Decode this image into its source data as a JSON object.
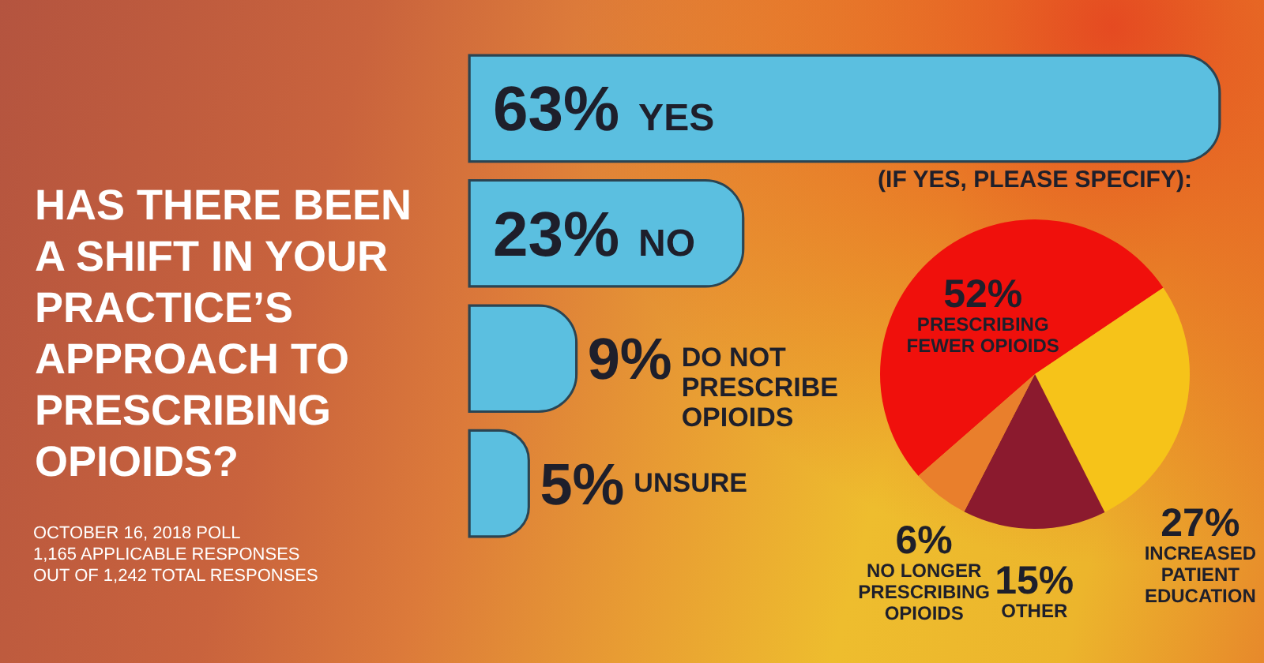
{
  "chart_data": [
    {
      "type": "bar",
      "orientation": "horizontal",
      "title": "HAS THERE BEEN A SHIFT IN YOUR PRACTICE’S APPROACH TO PRESCRIBING OPIOIDS?",
      "categories": [
        "YES",
        "NO",
        "DO NOT PRESCRIBE OPIOIDS",
        "UNSURE"
      ],
      "values": [
        63,
        23,
        9,
        5
      ],
      "value_labels": [
        "63%",
        "23%",
        "9%",
        "5%"
      ],
      "color": "#5bbfe0",
      "annotations": [
        "OCTOBER 16, 2018 POLL",
        "1,165 APPLICABLE RESPONSES",
        "OUT OF 1,242 TOTAL RESPONSES"
      ]
    },
    {
      "type": "pie",
      "title": "(IF YES, PLEASE SPECIFY):",
      "categories": [
        "PRESCRIBING FEWER OPIOIDS",
        "INCREASED PATIENT EDUCATION",
        "OTHER",
        "NO LONGER PRESCRIBING OPIOIDS"
      ],
      "values": [
        52,
        27,
        15,
        6
      ],
      "value_labels": [
        "52%",
        "27%",
        "15%",
        "6%"
      ],
      "colors": [
        "#f0100c",
        "#f6c319",
        "#8b1a2e",
        "#e97f2c"
      ]
    }
  ]
}
